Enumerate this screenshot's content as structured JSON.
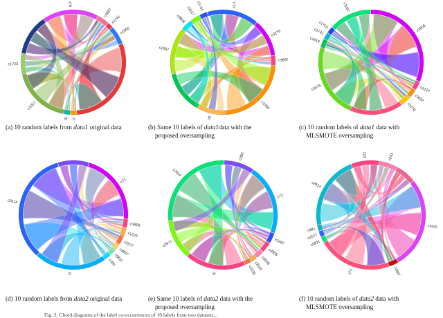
{
  "figure": {
    "footer_text": "Fig. 2: Chord diagrams of the label co-occurrences of 10 labels from two datasets...",
    "panels": [
      {
        "id": "a",
        "caption_parts": [
          "(a) 10 random labels from ",
          "data1",
          " original data"
        ],
        "caption_line2": "",
        "segments": [
          {
            "label": "c1276",
            "color": "#e040fb",
            "span": 55
          },
          {
            "label": "c3697",
            "color": "#ff6f91",
            "span": 12
          },
          {
            "label": "c1741",
            "color": "#ff2d55",
            "span": 5
          },
          {
            "label": "c1050",
            "color": "#2979ff",
            "span": 18
          },
          {
            "label": "",
            "color": "#e53935",
            "span": 95
          },
          {
            "label": "c5616",
            "color": "#ffa000",
            "span": 6
          },
          {
            "label": "c865",
            "color": "#00bfa5",
            "span": 6
          },
          {
            "label": "c1057",
            "color": "#7cb342",
            "span": 58
          },
          {
            "label": "c1723",
            "color": "#9ccc65",
            "span": 20
          },
          {
            "label": "",
            "color": "#1e3a8a",
            "span": 40
          }
        ]
      },
      {
        "id": "b",
        "caption_parts": [
          "(b) Same 10 labels of ",
          "data1",
          "data with the"
        ],
        "caption_line2": "proposed oversampling",
        "segments": [
          {
            "label": "c1741",
            "color": "#2962ff",
            "span": 55
          },
          {
            "label": "c3276",
            "color": "#d500f9",
            "span": 40
          },
          {
            "label": "c3697",
            "color": "#ff4081",
            "span": 10
          },
          {
            "label": "c1050",
            "color": "#ff9100",
            "span": 80
          },
          {
            "label": "c5376",
            "color": "#ffb74d",
            "span": 30
          },
          {
            "label": "",
            "color": "#00c853",
            "span": 45
          },
          {
            "label": "c1057",
            "color": "#aeea00",
            "span": 50
          },
          {
            "label": "c3608",
            "color": "#00e5ff",
            "span": 12
          },
          {
            "label": "c2127",
            "color": "#76ff03",
            "span": 10
          },
          {
            "label": "c1741",
            "color": "#304ffe",
            "span": 8
          }
        ]
      },
      {
        "id": "c",
        "caption_parts": [
          "(c) 10 random labels of ",
          "data1",
          " data with"
        ],
        "caption_line2": "MLSMOTE oversampling",
        "segments": [
          {
            "label": "c3605",
            "color": "#d500f9",
            "span": 95
          },
          {
            "label": "c2127",
            "color": "#ff3d8b",
            "span": 8
          },
          {
            "label": "c3697",
            "color": "#ff9100",
            "span": 8
          },
          {
            "label": "c1276",
            "color": "#ffc400",
            "span": 10
          },
          {
            "label": "",
            "color": "#ff4f79",
            "span": 50
          },
          {
            "label": "c3375",
            "color": "#64dd17",
            "span": 70
          },
          {
            "label": "c1616",
            "color": "#00c853",
            "span": 8
          },
          {
            "label": "c1741",
            "color": "#00b8d4",
            "span": 6
          },
          {
            "label": "c1723",
            "color": "#1e40ff",
            "span": 6
          },
          {
            "label": "c1057",
            "color": "#00e676",
            "span": 40
          }
        ]
      },
      {
        "id": "d",
        "caption_parts": [
          "(d) 10 random labels from ",
          "data2",
          " original data"
        ],
        "caption_line2": "",
        "segments": [
          {
            "label": "c71",
            "color": "#d500f9",
            "span": 70
          },
          {
            "label": "c3505",
            "color": "#ff4081",
            "span": 8
          },
          {
            "label": "c1225",
            "color": "#ffab40",
            "span": 8
          },
          {
            "label": "c2577",
            "color": "#ff6e40",
            "span": 8
          },
          {
            "label": "c3837",
            "color": "#ffd54f",
            "span": 6
          },
          {
            "label": "c5811",
            "color": "#69f0ae",
            "span": 6
          },
          {
            "label": "c481",
            "color": "#00e5ff",
            "span": 6
          },
          {
            "label": "c1420",
            "color": "#00b0ff",
            "span": 70
          },
          {
            "label": "c2614",
            "color": "#2962ff",
            "span": 110
          },
          {
            "label": "",
            "color": "#7c4dff",
            "span": 30
          }
        ]
      },
      {
        "id": "e",
        "caption_parts": [
          "(e) Same 10 labels of ",
          "data2",
          " data with the"
        ],
        "caption_line2": "proposed oversampling",
        "segments": [
          {
            "label": "c71",
            "color": "#00b0ff",
            "span": 70
          },
          {
            "label": "c1487",
            "color": "#304ffe",
            "span": 10
          },
          {
            "label": "c3505",
            "color": "#ff4081",
            "span": 10
          },
          {
            "label": "c5508",
            "color": "#ff80ab",
            "span": 8
          },
          {
            "label": "c3110",
            "color": "#ffab40",
            "span": 6
          },
          {
            "label": "c2225",
            "color": "#ff6e40",
            "span": 6
          },
          {
            "label": "c1420",
            "color": "#ff4081",
            "span": 60
          },
          {
            "label": "c2577",
            "color": "#76ff03",
            "span": 40
          },
          {
            "label": "c2614",
            "color": "#00e676",
            "span": 90
          },
          {
            "label": "c3837",
            "color": "#7c4dff",
            "span": 30
          }
        ]
      },
      {
        "id": "f",
        "caption_parts": [
          "(f) 10 random labels of ",
          "data2",
          " data with"
        ],
        "caption_line2": "MLSMOTE oversampling",
        "segments": [
          {
            "label": "c1420",
            "color": "#e040fb",
            "span": 100
          },
          {
            "label": "c3505",
            "color": "#d50000",
            "span": 10
          },
          {
            "label": "c71",
            "color": "#ff4f79",
            "span": 80
          },
          {
            "label": "c5811",
            "color": "#00e676",
            "span": 6
          },
          {
            "label": "c2577",
            "color": "#2962ff",
            "span": 6
          },
          {
            "label": "c481",
            "color": "#00b8d4",
            "span": 6
          },
          {
            "label": "c2614",
            "color": "#00bcd4",
            "span": 80
          },
          {
            "label": "c223",
            "color": "#ff4081",
            "span": 30
          },
          {
            "label": "c233",
            "color": "#ff80ab",
            "span": 20
          },
          {
            "label": "",
            "color": "#f06292",
            "span": 22
          }
        ]
      }
    ]
  }
}
